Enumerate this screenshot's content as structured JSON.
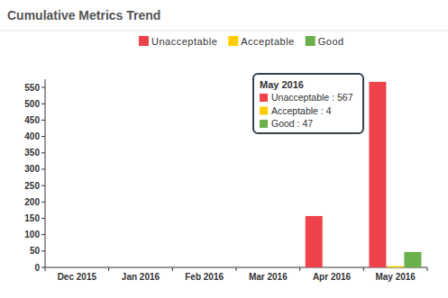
{
  "chart_data": {
    "type": "bar",
    "title": "Cumulative Metrics Trend",
    "categories": [
      "Dec 2015",
      "Jan 2016",
      "Feb 2016",
      "Mar 2016",
      "Apr 2016",
      "May 2016"
    ],
    "series": [
      {
        "name": "Unacceptable",
        "color": "#f0424b",
        "values": [
          0,
          0,
          0,
          0,
          157,
          567
        ]
      },
      {
        "name": "Acceptable",
        "color": "#ffcc00",
        "values": [
          0,
          0,
          0,
          0,
          0,
          4
        ]
      },
      {
        "name": "Good",
        "color": "#6ab04c",
        "values": [
          0,
          0,
          0,
          0,
          0,
          47
        ]
      }
    ],
    "ylim": [
      0,
      575
    ],
    "yticks": [
      0,
      50,
      100,
      150,
      200,
      250,
      300,
      350,
      400,
      450,
      500,
      550
    ],
    "grid": false,
    "legend": "top",
    "annotations": [
      {
        "title": "May 2016",
        "lines": [
          "Unacceptable : 567",
          "Acceptable : 4",
          "Good : 47"
        ]
      }
    ]
  }
}
